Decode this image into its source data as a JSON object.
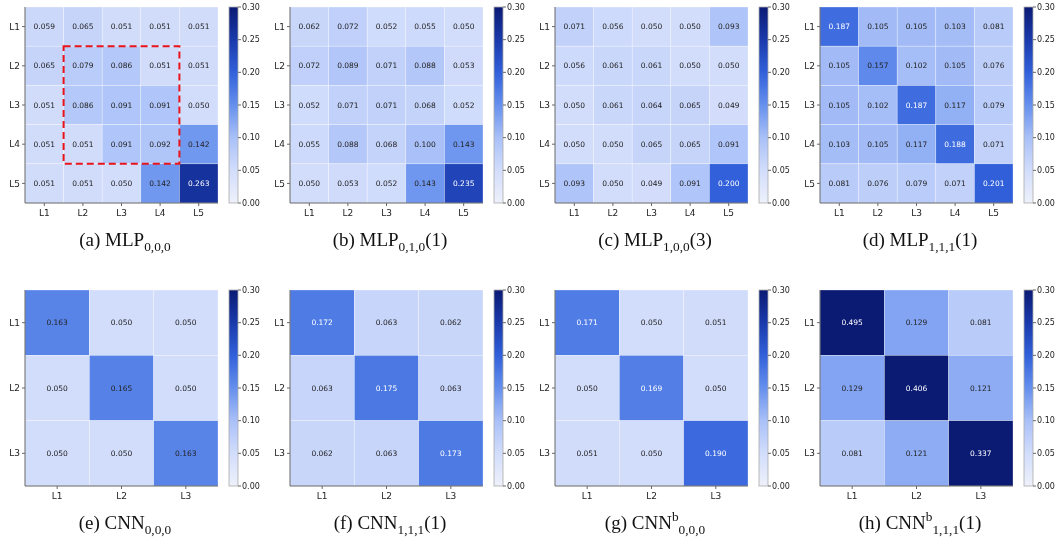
{
  "chart_data": [
    {
      "type": "heatmap",
      "title": "(a) MLP$_{0,0,0}$",
      "categories": [
        "L1",
        "L2",
        "L3",
        "L4",
        "L5"
      ],
      "y_categories": [
        "L1",
        "L2",
        "L3",
        "L4",
        "L5"
      ],
      "cells": [
        [
          0.059,
          0.065,
          0.051,
          0.051,
          0.051
        ],
        [
          0.065,
          0.079,
          0.086,
          0.051,
          0.051
        ],
        [
          0.051,
          0.086,
          0.091,
          0.091,
          0.05
        ],
        [
          0.051,
          0.051,
          0.091,
          0.092,
          0.142
        ],
        [
          0.051,
          0.051,
          0.05,
          0.142,
          0.263
        ]
      ],
      "cell_labels": [
        [
          "0.059",
          "0.065",
          "0.051",
          "0.051",
          "0.051"
        ],
        [
          "0.065",
          "0.079",
          "0.086",
          "0.051",
          "0.051"
        ],
        [
          "0.051",
          "0.086",
          "0.091",
          "0.091",
          "0.050"
        ],
        [
          "0.051",
          "0.051",
          "0.091",
          "0.092",
          "0.142"
        ],
        [
          "0.051",
          "0.051",
          "0.050",
          "0.142",
          "0.263"
        ]
      ],
      "clim": [
        0,
        0.3
      ],
      "cticks": [
        {
          "value": 0,
          "label": "0.00"
        },
        {
          "value": 0.05,
          "label": "0.05"
        },
        {
          "value": 0.1,
          "label": "0.10"
        },
        {
          "value": 0.15,
          "label": "0.15"
        },
        {
          "value": 0.2,
          "label": "0.20"
        },
        {
          "value": 0.25,
          "label": "0.25"
        },
        {
          "value": 0.3,
          "label": "0.30"
        }
      ]
    },
    {
      "type": "heatmap",
      "title": "(b) MLP$_{0,1,0}$(1)",
      "categories": [
        "L1",
        "L2",
        "L3",
        "L4",
        "L5"
      ],
      "y_categories": [
        "L1",
        "L2",
        "L3",
        "L4",
        "L5"
      ],
      "cells": [
        [
          0.062,
          0.072,
          0.052,
          0.055,
          0.05
        ],
        [
          0.072,
          0.089,
          0.071,
          0.088,
          0.053
        ],
        [
          0.052,
          0.071,
          0.071,
          0.068,
          0.052
        ],
        [
          0.055,
          0.088,
          0.068,
          0.1,
          0.143
        ],
        [
          0.05,
          0.053,
          0.052,
          0.143,
          0.235
        ]
      ],
      "cell_labels": [
        [
          "0.062",
          "0.072",
          "0.052",
          "0.055",
          "0.050"
        ],
        [
          "0.072",
          "0.089",
          "0.071",
          "0.088",
          "0.053"
        ],
        [
          "0.052",
          "0.071",
          "0.071",
          "0.068",
          "0.052"
        ],
        [
          "0.055",
          "0.088",
          "0.068",
          "0.100",
          "0.143"
        ],
        [
          "0.050",
          "0.053",
          "0.052",
          "0.143",
          "0.235"
        ]
      ],
      "clim": [
        0,
        0.3
      ],
      "cticks": [
        {
          "value": 0,
          "label": "0.00"
        },
        {
          "value": 0.05,
          "label": "0.05"
        },
        {
          "value": 0.1,
          "label": "0.10"
        },
        {
          "value": 0.15,
          "label": "0.15"
        },
        {
          "value": 0.2,
          "label": "0.20"
        },
        {
          "value": 0.25,
          "label": "0.25"
        },
        {
          "value": 0.3,
          "label": "0.30"
        }
      ]
    },
    {
      "type": "heatmap",
      "title": "(c) MLP$_{1,0,0}$(3)",
      "categories": [
        "L1",
        "L2",
        "L3",
        "L4",
        "L5"
      ],
      "y_categories": [
        "L1",
        "L2",
        "L3",
        "L4",
        "L5"
      ],
      "cells": [
        [
          0.071,
          0.056,
          0.05,
          0.05,
          0.093
        ],
        [
          0.056,
          0.061,
          0.061,
          0.05,
          0.05
        ],
        [
          0.05,
          0.061,
          0.064,
          0.065,
          0.049
        ],
        [
          0.05,
          0.05,
          0.065,
          0.065,
          0.091
        ],
        [
          0.093,
          0.05,
          0.049,
          0.091,
          0.2
        ]
      ],
      "cell_labels": [
        [
          "0.071",
          "0.056",
          "0.050",
          "0.050",
          "0.093"
        ],
        [
          "0.056",
          "0.061",
          "0.061",
          "0.050",
          "0.050"
        ],
        [
          "0.050",
          "0.061",
          "0.064",
          "0.065",
          "0.049"
        ],
        [
          "0.050",
          "0.050",
          "0.065",
          "0.065",
          "0.091"
        ],
        [
          "0.093",
          "0.050",
          "0.049",
          "0.091",
          "0.200"
        ]
      ],
      "clim": [
        0,
        0.3
      ],
      "cticks": [
        {
          "value": 0,
          "label": "0.00"
        },
        {
          "value": 0.05,
          "label": "0.05"
        },
        {
          "value": 0.1,
          "label": "0.10"
        },
        {
          "value": 0.15,
          "label": "0.15"
        },
        {
          "value": 0.2,
          "label": "0.20"
        },
        {
          "value": 0.25,
          "label": "0.25"
        },
        {
          "value": 0.3,
          "label": "0.30"
        }
      ]
    },
    {
      "type": "heatmap",
      "title": "(d) MLP$_{1,1,1}$(1)",
      "categories": [
        "L1",
        "L2",
        "L3",
        "L4",
        "L5"
      ],
      "y_categories": [
        "L1",
        "L2",
        "L3",
        "L4",
        "L5"
      ],
      "cells": [
        [
          0.187,
          0.105,
          0.105,
          0.103,
          0.081
        ],
        [
          0.105,
          0.157,
          0.102,
          0.105,
          0.076
        ],
        [
          0.105,
          0.102,
          0.187,
          0.117,
          0.079
        ],
        [
          0.103,
          0.105,
          0.117,
          0.188,
          0.071
        ],
        [
          0.081,
          0.076,
          0.079,
          0.071,
          0.201
        ]
      ],
      "cell_labels": [
        [
          "0.187",
          "0.105",
          "0.105",
          "0.103",
          "0.081"
        ],
        [
          "0.105",
          "0.157",
          "0.102",
          "0.105",
          "0.076"
        ],
        [
          "0.105",
          "0.102",
          "0.187",
          "0.117",
          "0.079"
        ],
        [
          "0.103",
          "0.105",
          "0.117",
          "0.188",
          "0.071"
        ],
        [
          "0.081",
          "0.076",
          "0.079",
          "0.071",
          "0.201"
        ]
      ],
      "clim": [
        0,
        0.3
      ],
      "cticks": [
        {
          "value": 0,
          "label": "0.00"
        },
        {
          "value": 0.05,
          "label": "0.05"
        },
        {
          "value": 0.1,
          "label": "0.10"
        },
        {
          "value": 0.15,
          "label": "0.15"
        },
        {
          "value": 0.2,
          "label": "0.20"
        },
        {
          "value": 0.25,
          "label": "0.25"
        },
        {
          "value": 0.3,
          "label": "0.30"
        }
      ]
    },
    {
      "type": "heatmap",
      "title": "(e) CNN$_{0,0,0}$",
      "categories": [
        "L1",
        "L2",
        "L3"
      ],
      "y_categories": [
        "L1",
        "L2",
        "L3"
      ],
      "cells": [
        [
          0.163,
          0.05,
          0.05
        ],
        [
          0.05,
          0.165,
          0.05
        ],
        [
          0.05,
          0.05,
          0.163
        ]
      ],
      "cell_labels": [
        [
          "0.163",
          "0.050",
          "0.050"
        ],
        [
          "0.050",
          "0.165",
          "0.050"
        ],
        [
          "0.050",
          "0.050",
          "0.163"
        ]
      ],
      "clim": [
        0,
        0.3
      ],
      "cticks": [
        {
          "value": 0,
          "label": "0.00"
        },
        {
          "value": 0.05,
          "label": "0.05"
        },
        {
          "value": 0.1,
          "label": "0.10"
        },
        {
          "value": 0.15,
          "label": "0.15"
        },
        {
          "value": 0.2,
          "label": "0.20"
        },
        {
          "value": 0.25,
          "label": "0.25"
        },
        {
          "value": 0.3,
          "label": "0.30"
        }
      ]
    },
    {
      "type": "heatmap",
      "title": "(f) CNN$_{1,1,1}$(1)",
      "categories": [
        "L1",
        "L2",
        "L3"
      ],
      "y_categories": [
        "L1",
        "L2",
        "L3"
      ],
      "cells": [
        [
          0.172,
          0.063,
          0.062
        ],
        [
          0.063,
          0.175,
          0.063
        ],
        [
          0.062,
          0.063,
          0.173
        ]
      ],
      "cell_labels": [
        [
          "0.172",
          "0.063",
          "0.062"
        ],
        [
          "0.063",
          "0.175",
          "0.063"
        ],
        [
          "0.062",
          "0.063",
          "0.173"
        ]
      ],
      "clim": [
        0,
        0.3
      ],
      "cticks": [
        {
          "value": 0,
          "label": "0.00"
        },
        {
          "value": 0.05,
          "label": "0.05"
        },
        {
          "value": 0.1,
          "label": "0.10"
        },
        {
          "value": 0.15,
          "label": "0.15"
        },
        {
          "value": 0.2,
          "label": "0.20"
        },
        {
          "value": 0.25,
          "label": "0.25"
        },
        {
          "value": 0.3,
          "label": "0.30"
        }
      ]
    },
    {
      "type": "heatmap",
      "title": "(g) CNN$^{b}$$_{0,0,0}$",
      "categories": [
        "L1",
        "L2",
        "L3"
      ],
      "y_categories": [
        "L1",
        "L2",
        "L3"
      ],
      "cells": [
        [
          0.171,
          0.05,
          0.051
        ],
        [
          0.05,
          0.169,
          0.05
        ],
        [
          0.051,
          0.05,
          0.19
        ]
      ],
      "cell_labels": [
        [
          "0.171",
          "0.050",
          "0.051"
        ],
        [
          "0.050",
          "0.169",
          "0.050"
        ],
        [
          "0.051",
          "0.050",
          "0.190"
        ]
      ],
      "clim": [
        0,
        0.3
      ],
      "cticks": [
        {
          "value": 0,
          "label": "0.00"
        },
        {
          "value": 0.05,
          "label": "0.05"
        },
        {
          "value": 0.1,
          "label": "0.10"
        },
        {
          "value": 0.15,
          "label": "0.15"
        },
        {
          "value": 0.2,
          "label": "0.20"
        },
        {
          "value": 0.25,
          "label": "0.25"
        },
        {
          "value": 0.3,
          "label": "0.30"
        }
      ]
    },
    {
      "type": "heatmap",
      "title": "(h) CNN$^{b}$$_{1,1,1}$(1)",
      "categories": [
        "L1",
        "L2",
        "L3"
      ],
      "y_categories": [
        "L1",
        "L2",
        "L3"
      ],
      "cells": [
        [
          0.495,
          0.129,
          0.081
        ],
        [
          0.129,
          0.406,
          0.121
        ],
        [
          0.081,
          0.121,
          0.337
        ]
      ],
      "cell_labels": [
        [
          "0.495",
          "0.129",
          "0.081"
        ],
        [
          "0.129",
          "0.406",
          "0.121"
        ],
        [
          "0.081",
          "0.121",
          "0.337"
        ]
      ],
      "clim": [
        0,
        0.3
      ],
      "cticks": [
        {
          "value": 0,
          "label": "0.00"
        },
        {
          "value": 0.05,
          "label": "0.05"
        },
        {
          "value": 0.1,
          "label": "0.10"
        },
        {
          "value": 0.15,
          "label": "0.15"
        },
        {
          "value": 0.2,
          "label": "0.20"
        },
        {
          "value": 0.25,
          "label": "0.25"
        },
        {
          "value": 0.3,
          "label": "0.30"
        }
      ]
    }
  ]
}
